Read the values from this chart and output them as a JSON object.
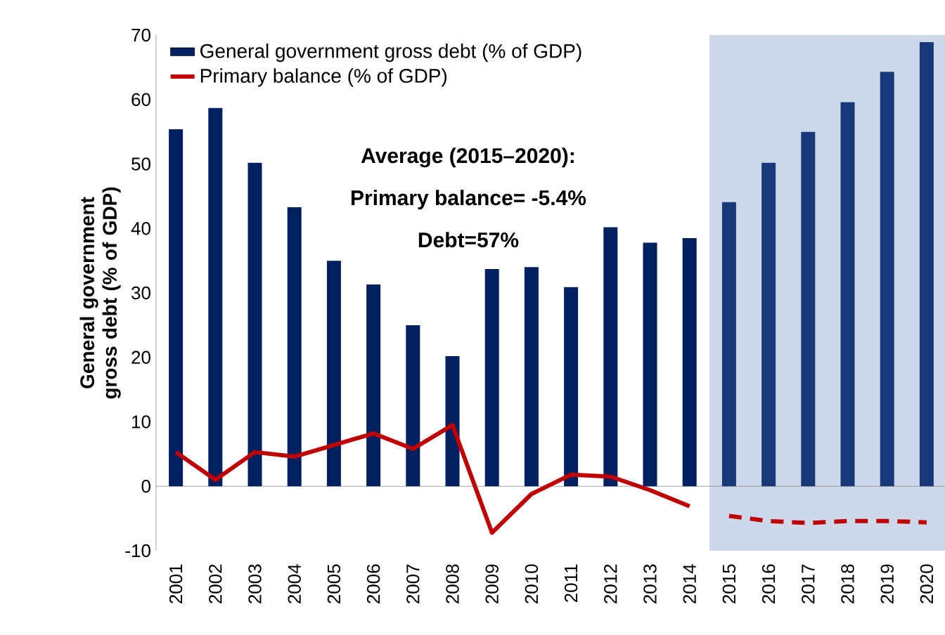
{
  "chart_data": {
    "type": "bar",
    "ylabel": "General government gross debt (% of GDP)",
    "categories": [
      "2001",
      "2002",
      "2003",
      "2004",
      "2005",
      "2006",
      "2007",
      "2008",
      "2009",
      "2010",
      "2011",
      "2012",
      "2013",
      "2014",
      "2015",
      "2016",
      "2017",
      "2018",
      "2019",
      "2020"
    ],
    "ylim": [
      -10,
      70
    ],
    "yticks": [
      -10,
      0,
      10,
      20,
      30,
      40,
      50,
      60,
      70
    ],
    "legend": "top left",
    "annotations": [
      "Average (2015–2020):",
      "Primary balance= -5.4%",
      "Debt=57%"
    ],
    "bands": [
      {
        "axis": "x",
        "from": "2015",
        "to": "2020",
        "color": "#cdd9ea"
      }
    ],
    "series": [
      {
        "name": "General government gross debt (% of GDP)",
        "color": "#002060",
        "colors": [
          "#002060",
          "#002060",
          "#002060",
          "#002060",
          "#002060",
          "#002060",
          "#002060",
          "#002060",
          "#002060",
          "#002060",
          "#002060",
          "#002060",
          "#002060",
          "#002060",
          "#17397a",
          "#17397a",
          "#17397a",
          "#17397a",
          "#17397a",
          "#17397a"
        ],
        "values": [
          55.4,
          58.7,
          50.2,
          43.3,
          35.0,
          31.3,
          25.0,
          20.2,
          33.7,
          34.0,
          30.9,
          40.2,
          37.8,
          38.5,
          44.1,
          50.2,
          55.0,
          59.6,
          64.3,
          68.9
        ]
      },
      {
        "name": "Primary balance (% of GDP)",
        "type": "line",
        "color": "#c00000",
        "line_style": "solid",
        "values": [
          5.3,
          1.0,
          5.3,
          4.6,
          6.4,
          8.2,
          5.8,
          9.5,
          -7.2,
          -1.2,
          1.8,
          1.5,
          -0.6,
          -3.1,
          null,
          null,
          null,
          null,
          null,
          null
        ]
      },
      {
        "type": "line",
        "color": "#c00000",
        "line_style": "dashed",
        "values": [
          null,
          null,
          null,
          null,
          null,
          null,
          null,
          null,
          null,
          null,
          null,
          null,
          null,
          null,
          -4.6,
          -5.4,
          -5.7,
          -5.4,
          -5.4,
          -5.6
        ]
      }
    ]
  }
}
